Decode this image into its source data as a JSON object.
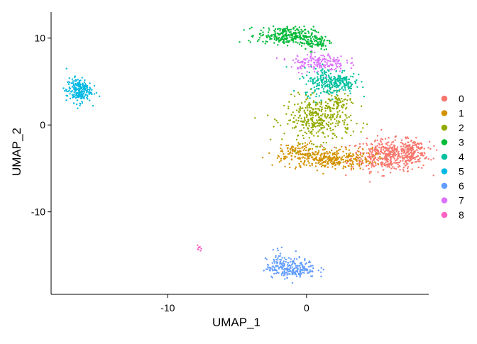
{
  "chart_data": {
    "type": "scatter",
    "title": "",
    "xlabel": "UMAP_1",
    "ylabel": "UMAP_2",
    "xlim": [
      -18.4,
      8.8
    ],
    "ylim": [
      -19.5,
      13.0
    ],
    "x_ticks": [
      -10,
      0
    ],
    "y_ticks": [
      10,
      0,
      -10
    ],
    "x_tick_labels": [
      "-10",
      "0"
    ],
    "y_tick_labels": [
      "10",
      "0",
      "-10"
    ],
    "grid": false,
    "legend_position": "right",
    "series": [
      {
        "name": "0",
        "color": "#F8766D",
        "clusters": [
          {
            "cx": 6.0,
            "cy": -3.5,
            "sx": 1.4,
            "sy": 0.9,
            "n": 480
          },
          {
            "cx": 7.6,
            "cy": -2.9,
            "sx": 0.5,
            "sy": 0.6,
            "n": 90
          }
        ]
      },
      {
        "name": "1",
        "color": "#D39200",
        "clusters": [
          {
            "cx": 1.5,
            "cy": -3.9,
            "sx": 1.6,
            "sy": 0.6,
            "n": 330
          },
          {
            "cx": -0.7,
            "cy": -2.9,
            "sx": 0.6,
            "sy": 0.5,
            "n": 70
          }
        ]
      },
      {
        "name": "2",
        "color": "#93AA00",
        "clusters": [
          {
            "cx": 0.8,
            "cy": 0.6,
            "sx": 1.2,
            "sy": 1.3,
            "n": 360
          },
          {
            "cx": 2.2,
            "cy": 2.6,
            "sx": 0.5,
            "sy": 0.5,
            "n": 60
          }
        ]
      },
      {
        "name": "3",
        "color": "#00BA38",
        "clusters": [
          {
            "cx": -1.5,
            "cy": 10.3,
            "sx": 1.0,
            "sy": 0.5,
            "n": 260
          },
          {
            "cx": 0.6,
            "cy": 9.6,
            "sx": 0.6,
            "sy": 0.5,
            "n": 90
          }
        ]
      },
      {
        "name": "4",
        "color": "#00C19F",
        "clusters": [
          {
            "cx": 1.6,
            "cy": 5.0,
            "sx": 0.9,
            "sy": 0.8,
            "n": 240
          },
          {
            "cx": 2.6,
            "cy": 4.8,
            "sx": 0.5,
            "sy": 0.4,
            "n": 60
          }
        ]
      },
      {
        "name": "5",
        "color": "#00B9E3",
        "clusters": [
          {
            "cx": -16.4,
            "cy": 4.0,
            "sx": 0.45,
            "sy": 0.7,
            "n": 220
          }
        ]
      },
      {
        "name": "6",
        "color": "#619CFF",
        "clusters": [
          {
            "cx": -1.1,
            "cy": -16.5,
            "sx": 0.9,
            "sy": 0.55,
            "n": 230
          },
          {
            "cx": -2.0,
            "cy": -15.2,
            "sx": 0.2,
            "sy": 0.6,
            "n": 20
          }
        ]
      },
      {
        "name": "7",
        "color": "#DB72FB",
        "clusters": [
          {
            "cx": 0.8,
            "cy": 7.2,
            "sx": 1.0,
            "sy": 0.55,
            "n": 170
          }
        ]
      },
      {
        "name": "8",
        "color": "#FF61C3",
        "clusters": [
          {
            "cx": -7.7,
            "cy": -14.1,
            "sx": 0.1,
            "sy": 0.12,
            "n": 8
          }
        ]
      }
    ]
  }
}
